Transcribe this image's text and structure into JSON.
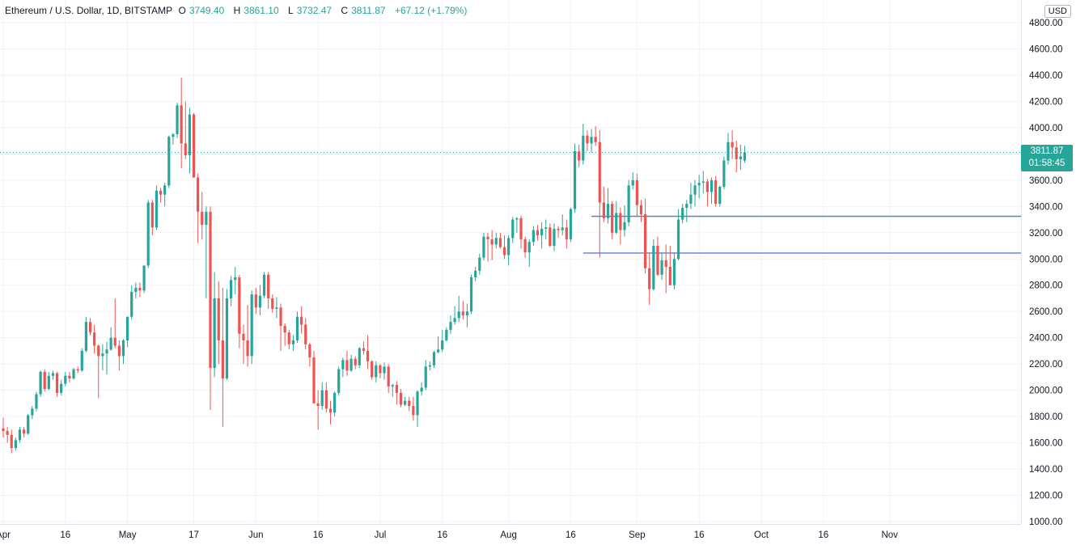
{
  "header": {
    "symbol": "Ethereum / U.S. Dollar, 1D, BITSTAMP",
    "o_label": "O",
    "o_value": "3749.40",
    "h_label": "H",
    "h_value": "3861.10",
    "l_label": "L",
    "l_value": "3732.47",
    "c_label": "C",
    "c_value": "3811.87",
    "change": "+67.12 (+1.79%)"
  },
  "currency_button": "USD",
  "last_price": {
    "price": "3811.87",
    "countdown": "01:58:45"
  },
  "colors": {
    "up": "#26a69a",
    "down": "#ef5350",
    "wick_up": "#26a69a",
    "wick_down": "#ef5350",
    "grid": "#f0f3fa",
    "hline": "#5b7fd6",
    "text": "#131722",
    "axis": "#787b86"
  },
  "chart_data": {
    "type": "candlestick",
    "title": "Ethereum / U.S. Dollar, 1D, BITSTAMP",
    "ylim": [
      1000,
      4800
    ],
    "y_ticks": [
      "1000.00",
      "1200.00",
      "1400.00",
      "1600.00",
      "1800.00",
      "2000.00",
      "2200.00",
      "2400.00",
      "2600.00",
      "2800.00",
      "3000.00",
      "3200.00",
      "3400.00",
      "3600.00",
      "3800.00",
      "4000.00",
      "4200.00",
      "4400.00",
      "4600.00",
      "4800.00"
    ],
    "x_ticks": [
      {
        "label": "Apr",
        "day": 1
      },
      {
        "label": "16",
        "day": 16
      },
      {
        "label": "May",
        "day": 31
      },
      {
        "label": "17",
        "day": 47
      },
      {
        "label": "Jun",
        "day": 62
      },
      {
        "label": "16",
        "day": 77
      },
      {
        "label": "Jul",
        "day": 92
      },
      {
        "label": "16",
        "day": 107
      },
      {
        "label": "Aug",
        "day": 123
      },
      {
        "label": "16",
        "day": 138
      },
      {
        "label": "Sep",
        "day": 154
      },
      {
        "label": "16",
        "day": 169
      },
      {
        "label": "Oct",
        "day": 184
      },
      {
        "label": "16",
        "day": 199
      },
      {
        "label": "Nov",
        "day": 215
      }
    ],
    "horizontal_lines": [
      {
        "price": 3325,
        "start_day": 143
      },
      {
        "price": 3045,
        "start_day": 141
      }
    ],
    "candles": [
      [
        1710,
        1790,
        1640,
        1690
      ],
      [
        1690,
        1720,
        1600,
        1660
      ],
      [
        1660,
        1700,
        1520,
        1560
      ],
      [
        1560,
        1640,
        1540,
        1620
      ],
      [
        1620,
        1720,
        1600,
        1700
      ],
      [
        1700,
        1720,
        1640,
        1670
      ],
      [
        1670,
        1820,
        1660,
        1810
      ],
      [
        1810,
        1880,
        1780,
        1860
      ],
      [
        1860,
        1990,
        1840,
        1970
      ],
      [
        1970,
        2150,
        1950,
        2140
      ],
      [
        2140,
        2160,
        1990,
        2010
      ],
      [
        2010,
        2140,
        2000,
        2110
      ],
      [
        2110,
        2150,
        2080,
        2130
      ],
      [
        2130,
        2140,
        1950,
        1980
      ],
      [
        1980,
        2080,
        1960,
        2050
      ],
      [
        2050,
        2140,
        2030,
        2110
      ],
      [
        2110,
        2140,
        2060,
        2090
      ],
      [
        2090,
        2170,
        2080,
        2160
      ],
      [
        2160,
        2180,
        2130,
        2150
      ],
      [
        2150,
        2320,
        2140,
        2300
      ],
      [
        2300,
        2560,
        2290,
        2520
      ],
      [
        2520,
        2550,
        2420,
        2440
      ],
      [
        2440,
        2500,
        2280,
        2340
      ],
      [
        2340,
        2350,
        1940,
        2260
      ],
      [
        2260,
        2350,
        2150,
        2280
      ],
      [
        2280,
        2370,
        2120,
        2310
      ],
      [
        2310,
        2480,
        2300,
        2400
      ],
      [
        2400,
        2700,
        2320,
        2340
      ],
      [
        2340,
        2380,
        2150,
        2260
      ],
      [
        2260,
        2390,
        2200,
        2380
      ],
      [
        2380,
        2560,
        2330,
        2560
      ],
      [
        2560,
        2800,
        2540,
        2750
      ],
      [
        2750,
        2820,
        2700,
        2780
      ],
      [
        2780,
        2820,
        2710,
        2760
      ],
      [
        2760,
        2950,
        2740,
        2950
      ],
      [
        2950,
        3450,
        2930,
        3430
      ],
      [
        3430,
        3450,
        3180,
        3240
      ],
      [
        3240,
        3560,
        3220,
        3520
      ],
      [
        3520,
        3540,
        3430,
        3490
      ],
      [
        3490,
        3580,
        3400,
        3560
      ],
      [
        3560,
        3940,
        3540,
        3930
      ],
      [
        3930,
        3960,
        3870,
        3950
      ],
      [
        3950,
        4190,
        3920,
        4170
      ],
      [
        4170,
        4380,
        3690,
        3880
      ],
      [
        3880,
        4200,
        3760,
        3790
      ],
      [
        3790,
        4150,
        3650,
        4100
      ],
      [
        4100,
        4110,
        3620,
        3620
      ],
      [
        3620,
        3650,
        3120,
        3360
      ],
      [
        3360,
        3510,
        3150,
        3260
      ],
      [
        3260,
        3400,
        2700,
        3360
      ],
      [
        3360,
        3400,
        1850,
        2170
      ],
      [
        2170,
        2900,
        2100,
        2700
      ],
      [
        2700,
        2830,
        2200,
        2380
      ],
      [
        2380,
        2780,
        1720,
        2090
      ],
      [
        2090,
        2770,
        2080,
        2700
      ],
      [
        2700,
        2870,
        2640,
        2840
      ],
      [
        2840,
        2940,
        2730,
        2860
      ],
      [
        2860,
        2880,
        2320,
        2430
      ],
      [
        2430,
        2500,
        2200,
        2380
      ],
      [
        2380,
        2650,
        2180,
        2260
      ],
      [
        2260,
        2760,
        2200,
        2730
      ],
      [
        2730,
        2780,
        2580,
        2630
      ],
      [
        2630,
        2800,
        2570,
        2720
      ],
      [
        2720,
        2900,
        2700,
        2880
      ],
      [
        2880,
        2900,
        2620,
        2700
      ],
      [
        2700,
        2730,
        2590,
        2620
      ],
      [
        2620,
        2710,
        2550,
        2630
      ],
      [
        2630,
        2660,
        2300,
        2490
      ],
      [
        2490,
        2510,
        2340,
        2440
      ],
      [
        2440,
        2460,
        2310,
        2350
      ],
      [
        2350,
        2420,
        2300,
        2380
      ],
      [
        2380,
        2600,
        2360,
        2560
      ],
      [
        2560,
        2640,
        2430,
        2500
      ],
      [
        2500,
        2550,
        2310,
        2350
      ],
      [
        2350,
        2360,
        2180,
        2250
      ],
      [
        2250,
        2300,
        1920,
        1900
      ],
      [
        1900,
        2000,
        1700,
        1880
      ],
      [
        1880,
        2060,
        1850,
        2000
      ],
      [
        2000,
        2060,
        1830,
        1860
      ],
      [
        1860,
        1920,
        1740,
        1830
      ],
      [
        1830,
        1990,
        1800,
        1980
      ],
      [
        1980,
        2180,
        1960,
        2160
      ],
      [
        2160,
        2250,
        2100,
        2230
      ],
      [
        2230,
        2300,
        2110,
        2150
      ],
      [
        2150,
        2270,
        2140,
        2240
      ],
      [
        2240,
        2260,
        2160,
        2190
      ],
      [
        2190,
        2330,
        2170,
        2320
      ],
      [
        2320,
        2370,
        2270,
        2300
      ],
      [
        2300,
        2420,
        2160,
        2220
      ],
      [
        2220,
        2230,
        2080,
        2100
      ],
      [
        2100,
        2220,
        2060,
        2190
      ],
      [
        2190,
        2200,
        2090,
        2130
      ],
      [
        2130,
        2210,
        2080,
        2180
      ],
      [
        2180,
        2200,
        1980,
        2030
      ],
      [
        2030,
        2050,
        1950,
        2040
      ],
      [
        2040,
        2070,
        1890,
        1980
      ],
      [
        1980,
        2010,
        1870,
        1890
      ],
      [
        1890,
        1950,
        1880,
        1920
      ],
      [
        1920,
        1950,
        1840,
        1880
      ],
      [
        1880,
        1950,
        1770,
        1810
      ],
      [
        1810,
        2000,
        1720,
        1990
      ],
      [
        1990,
        2060,
        1960,
        2020
      ],
      [
        2020,
        2230,
        2000,
        2180
      ],
      [
        2180,
        2220,
        2150,
        2190
      ],
      [
        2190,
        2300,
        2170,
        2290
      ],
      [
        2290,
        2410,
        2280,
        2310
      ],
      [
        2310,
        2460,
        2290,
        2380
      ],
      [
        2380,
        2480,
        2370,
        2460
      ],
      [
        2460,
        2570,
        2430,
        2520
      ],
      [
        2520,
        2640,
        2500,
        2550
      ],
      [
        2550,
        2720,
        2520,
        2600
      ],
      [
        2600,
        2680,
        2540,
        2570
      ],
      [
        2570,
        2660,
        2480,
        2600
      ],
      [
        2600,
        2880,
        2580,
        2860
      ],
      [
        2860,
        2940,
        2830,
        2910
      ],
      [
        2910,
        3040,
        2880,
        3010
      ],
      [
        3010,
        3200,
        2990,
        3170
      ],
      [
        3170,
        3200,
        2980,
        3150
      ],
      [
        3150,
        3220,
        2990,
        3110
      ],
      [
        3110,
        3200,
        3080,
        3160
      ],
      [
        3160,
        3200,
        3080,
        3090
      ],
      [
        3090,
        3180,
        3000,
        3030
      ],
      [
        3030,
        3180,
        2950,
        3160
      ],
      [
        3160,
        3320,
        3120,
        3300
      ],
      [
        3300,
        3320,
        3200,
        3310
      ],
      [
        3310,
        3330,
        3080,
        3150
      ],
      [
        3150,
        3170,
        3010,
        3050
      ],
      [
        3050,
        3150,
        2940,
        3130
      ],
      [
        3130,
        3250,
        3100,
        3220
      ],
      [
        3220,
        3260,
        3140,
        3180
      ],
      [
        3180,
        3280,
        3080,
        3230
      ],
      [
        3230,
        3300,
        3150,
        3240
      ],
      [
        3240,
        3270,
        3090,
        3100
      ],
      [
        3100,
        3270,
        3060,
        3230
      ],
      [
        3230,
        3250,
        3160,
        3220
      ],
      [
        3220,
        3340,
        3180,
        3240
      ],
      [
        3240,
        3300,
        3080,
        3150
      ],
      [
        3150,
        3390,
        3130,
        3380
      ],
      [
        3380,
        3880,
        3350,
        3820
      ],
      [
        3820,
        3870,
        3700,
        3750
      ],
      [
        3750,
        4030,
        3720,
        3940
      ],
      [
        3940,
        3980,
        3820,
        3880
      ],
      [
        3880,
        3990,
        3810,
        3930
      ],
      [
        3930,
        4010,
        3860,
        3890
      ],
      [
        3890,
        3980,
        3010,
        3430
      ],
      [
        3430,
        3550,
        3280,
        3310
      ],
      [
        3310,
        3540,
        3270,
        3420
      ],
      [
        3420,
        3440,
        3150,
        3200
      ],
      [
        3200,
        3440,
        3190,
        3350
      ],
      [
        3350,
        3390,
        3110,
        3220
      ],
      [
        3220,
        3410,
        3170,
        3280
      ],
      [
        3280,
        3600,
        3250,
        3560
      ],
      [
        3560,
        3660,
        3530,
        3600
      ],
      [
        3600,
        3650,
        3320,
        3410
      ],
      [
        3410,
        3450,
        3280,
        3340
      ],
      [
        3340,
        3460,
        2890,
        2930
      ],
      [
        2930,
        3050,
        2650,
        2770
      ],
      [
        2770,
        3150,
        2760,
        3100
      ],
      [
        3100,
        3170,
        2870,
        2880
      ],
      [
        2880,
        3050,
        2840,
        2990
      ],
      [
        2990,
        3110,
        2740,
        2940
      ],
      [
        2940,
        3100,
        2800,
        2800
      ],
      [
        2800,
        3050,
        2770,
        3000
      ],
      [
        3000,
        3380,
        2990,
        3300
      ],
      [
        3300,
        3420,
        3270,
        3390
      ],
      [
        3390,
        3450,
        3280,
        3420
      ],
      [
        3420,
        3580,
        3380,
        3490
      ],
      [
        3490,
        3600,
        3400,
        3560
      ],
      [
        3560,
        3640,
        3460,
        3580
      ],
      [
        3580,
        3670,
        3500,
        3590
      ],
      [
        3590,
        3610,
        3400,
        3510
      ],
      [
        3510,
        3620,
        3420,
        3600
      ],
      [
        3600,
        3630,
        3400,
        3420
      ],
      [
        3420,
        3560,
        3400,
        3550
      ],
      [
        3550,
        3780,
        3530,
        3750
      ],
      [
        3750,
        3960,
        3720,
        3890
      ],
      [
        3890,
        3980,
        3760,
        3850
      ],
      [
        3850,
        3900,
        3660,
        3760
      ],
      [
        3760,
        3870,
        3680,
        3780
      ],
      [
        3749.4,
        3861.1,
        3732.47,
        3811.87
      ]
    ]
  }
}
